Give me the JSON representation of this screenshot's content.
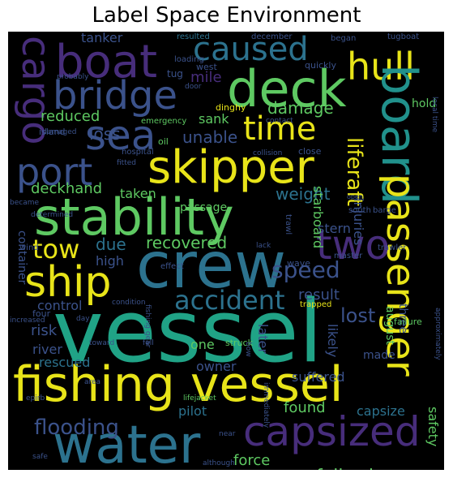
{
  "title": "Label Space Environment",
  "words": {
    "vessel": "vessel",
    "fishing_vessel": "fishing vessel",
    "water": "water",
    "crew": "crew",
    "stability": "stability",
    "skipper": "skipper",
    "deck": "deck",
    "boat": "boat",
    "board": "board",
    "bridge": "bridge",
    "sea": "sea",
    "cargo": "cargo",
    "port": "port",
    "time": "time",
    "hull": "hull",
    "caused": "caused",
    "passenger": "passenger",
    "two": "two",
    "ship": "ship",
    "capsized": "capsized",
    "accident": "accident",
    "tow": "tow",
    "speed": "speed",
    "liferaft": "liferaft",
    "flooding": "flooding",
    "recovered": "recovered",
    "lost": "lost",
    "following": "following",
    "damage": "damage",
    "reduced": "reduced",
    "loss": "loss",
    "unable": "unable",
    "deckhand": "deckhand",
    "weight": "weight",
    "due": "due",
    "mile": "mile",
    "tanker": "tanker",
    "sank": "sank",
    "taken": "taken",
    "passage": "passage",
    "stern": "stern",
    "starboard": "starboard",
    "injuries": "injuries",
    "high": "high",
    "control": "control",
    "risk": "risk",
    "river": "river",
    "rescued": "rescued",
    "one": "one",
    "owner": "owner",
    "result": "result",
    "later": "later",
    "likely": "likely",
    "made": "made",
    "suffered": "suffered",
    "found": "found",
    "capsize": "capsize",
    "pilot": "pilot",
    "force": "force",
    "safety": "safety",
    "august": "august",
    "three": "three",
    "container": "container",
    "hold": "hold",
    "dinghy": "dinghy",
    "west": "west",
    "quickly": "quickly",
    "resulted": "resulted",
    "december": "december",
    "began": "began",
    "tugboat": "tugboat",
    "loading": "loading",
    "tug": "tug",
    "probably": "probably",
    "door": "door",
    "emergency": "emergency",
    "contact": "contact",
    "island": "island",
    "damaged": "damaged",
    "oil": "oil",
    "collision": "collision",
    "close": "close",
    "hospital": "hospital",
    "fitted": "fitted",
    "became": "became",
    "determined": "determined",
    "open": "open",
    "south": "south",
    "barge": "barge",
    "trawl": "trawl",
    "wind": "wind",
    "effect": "effect",
    "wave": "wave",
    "trawler": "trawler",
    "lack": "lack",
    "master": "master",
    "condition": "condition",
    "trapped": "trapped",
    "failure": "failure",
    "four": "four",
    "increased": "increased",
    "day": "day",
    "fishing_gear": "fishing gear",
    "fell": "fell",
    "toward": "toward",
    "struck": "struck",
    "bow": "bow",
    "immediately": "immediately",
    "approximately": "approximately",
    "local_time": "local time",
    "area": "area",
    "lifejacket": "lifejacket",
    "epirb": "epirb",
    "near": "near",
    "safe": "safe",
    "although": "although",
    "operation": "operation"
  },
  "colors": {
    "yellow": "#e8e419",
    "lightgreen": "#5ec962",
    "green": "#3bbb75",
    "teal": "#21918c",
    "blueteal": "#2c728e",
    "blue": "#3b528b",
    "purple": "#472d7b",
    "darkpurple": "#440154"
  }
}
